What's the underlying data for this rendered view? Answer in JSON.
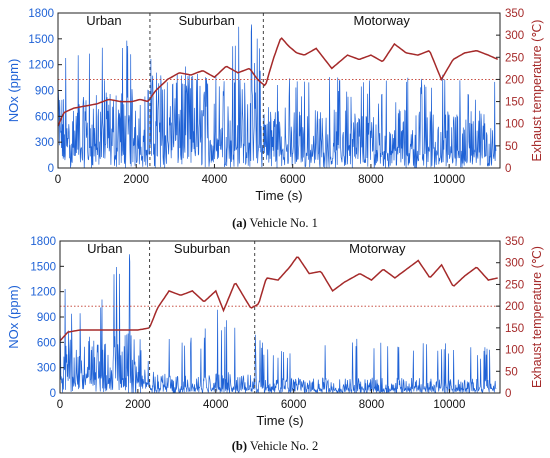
{
  "figure": {
    "captions": [
      {
        "tag": "(a)",
        "text": "Vehicle No. 1"
      },
      {
        "tag": "(b)",
        "text": "Vehicle No. 2"
      }
    ]
  },
  "colors": {
    "nox": "#1f62d6",
    "temperature": "#a52a2a",
    "reference_line": "#c0392b",
    "phase_divider": "#444444",
    "axis": "#222222"
  },
  "chart_data": [
    {
      "type": "line",
      "title": "",
      "caption": "(a) Vehicle No. 1",
      "xlabel": "Time (s)",
      "ylabel_left": "NOx (ppm)",
      "ylabel_right": "Exhaust temperature (℃)",
      "xlim": [
        0,
        11300
      ],
      "ylim_left": [
        0,
        1800
      ],
      "ylim_right": [
        0,
        350
      ],
      "xticks": [
        0,
        2000,
        4000,
        6000,
        8000,
        10000
      ],
      "yticks_left": [
        0,
        300,
        600,
        900,
        1200,
        1500,
        1800
      ],
      "yticks_right": [
        0,
        50,
        100,
        150,
        200,
        250,
        300,
        350
      ],
      "phases": [
        {
          "name": "Urban",
          "start": 0,
          "end": 2350
        },
        {
          "name": "Suburban",
          "start": 2350,
          "end": 5250
        },
        {
          "name": "Motorway",
          "start": 5250,
          "end": 11300
        }
      ],
      "reference_line": {
        "axis": "right",
        "value": 200
      },
      "grid": false,
      "series": [
        {
          "axis": "left",
          "style": "dense-spikes",
          "x": [
            0,
            500,
            1000,
            1500,
            2000,
            2350,
            2800,
            3300,
            3800,
            4300,
            4800,
            5250,
            5800,
            6500,
            7500,
            8500,
            9500,
            10500,
            11200
          ],
          "typical": [
            500,
            450,
            480,
            500,
            520,
            550,
            600,
            620,
            650,
            600,
            580,
            450,
            400,
            380,
            380,
            380,
            380,
            380,
            380
          ],
          "peak": [
            1500,
            1550,
            1400,
            1500,
            1650,
            1520,
            1100,
            1200,
            1150,
            1700,
            1780,
            1500,
            1050,
            1100,
            1100,
            1050,
            1100,
            1100,
            1050
          ]
        },
        {
          "axis": "right",
          "x": [
            0,
            150,
            400,
            700,
            1000,
            1300,
            1600,
            1900,
            2100,
            2300,
            2500,
            2800,
            3100,
            3400,
            3700,
            4000,
            4300,
            4600,
            4900,
            5100,
            5300,
            5500,
            5700,
            5900,
            6100,
            6300,
            6600,
            7000,
            7400,
            7700,
            8000,
            8300,
            8600,
            8900,
            9200,
            9500,
            9800,
            10100,
            10400,
            10700,
            11000,
            11250
          ],
          "y": [
            95,
            125,
            135,
            140,
            145,
            155,
            150,
            150,
            155,
            150,
            175,
            200,
            215,
            210,
            220,
            205,
            230,
            215,
            225,
            200,
            185,
            245,
            295,
            275,
            260,
            255,
            270,
            225,
            255,
            245,
            255,
            240,
            280,
            260,
            255,
            265,
            200,
            245,
            260,
            265,
            255,
            245
          ]
        }
      ]
    },
    {
      "type": "line",
      "title": "",
      "caption": "(b) Vehicle No. 2",
      "xlabel": "Time (s)",
      "ylabel_left": "NOx (ppm)",
      "ylabel_right": "Exhaust temperature (℃)",
      "xlim": [
        0,
        11300
      ],
      "ylim_left": [
        0,
        1800
      ],
      "ylim_right": [
        0,
        350
      ],
      "xticks": [
        0,
        2000,
        4000,
        6000,
        8000,
        10000
      ],
      "yticks_left": [
        0,
        300,
        600,
        900,
        1200,
        1500,
        1800
      ],
      "yticks_right": [
        0,
        50,
        100,
        150,
        200,
        250,
        300,
        350
      ],
      "phases": [
        {
          "name": "Urban",
          "start": 0,
          "end": 2300
        },
        {
          "name": "Suburban",
          "start": 2300,
          "end": 5000
        },
        {
          "name": "Motorway",
          "start": 5000,
          "end": 11300
        }
      ],
      "reference_line": {
        "axis": "right",
        "value": 200
      },
      "grid": false,
      "series": [
        {
          "axis": "left",
          "style": "dense-spikes",
          "x": [
            0,
            500,
            1000,
            1500,
            2000,
            2300,
            2800,
            3500,
            4000,
            4500,
            5000,
            5500,
            6500,
            7500,
            8500,
            9500,
            10500,
            11200
          ],
          "typical": [
            450,
            400,
            350,
            380,
            420,
            150,
            120,
            110,
            150,
            130,
            120,
            100,
            100,
            100,
            100,
            100,
            100,
            100
          ],
          "peak": [
            1300,
            1150,
            1400,
            1700,
            1600,
            400,
            700,
            650,
            1050,
            850,
            700,
            450,
            850,
            700,
            650,
            750,
            550,
            550
          ]
        },
        {
          "axis": "right",
          "x": [
            0,
            200,
            500,
            800,
            1100,
            1400,
            1700,
            2000,
            2300,
            2500,
            2800,
            3100,
            3400,
            3700,
            4000,
            4200,
            4500,
            4700,
            4900,
            5100,
            5300,
            5600,
            5900,
            6100,
            6400,
            6700,
            7000,
            7300,
            7700,
            8000,
            8300,
            8600,
            8900,
            9200,
            9500,
            9800,
            10100,
            10400,
            10700,
            11000,
            11250
          ],
          "y": [
            120,
            140,
            145,
            145,
            145,
            145,
            145,
            145,
            150,
            195,
            235,
            225,
            235,
            210,
            235,
            190,
            255,
            225,
            195,
            205,
            265,
            260,
            290,
            315,
            275,
            280,
            235,
            255,
            275,
            260,
            285,
            265,
            285,
            305,
            265,
            295,
            245,
            270,
            290,
            260,
            265
          ]
        }
      ]
    }
  ]
}
